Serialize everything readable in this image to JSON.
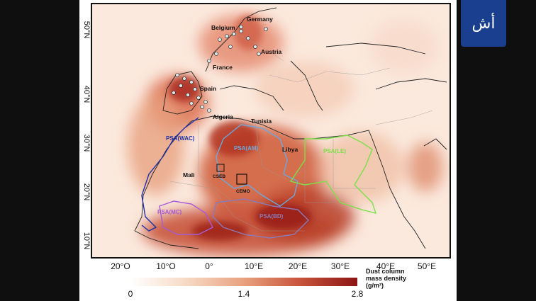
{
  "map": {
    "places": {
      "germany": "Germany",
      "belgium": "Belgium",
      "austria": "Austria",
      "france": "France",
      "spain": "Spain",
      "algeria": "Algeria",
      "tunisia": "Tunisia",
      "libya": "Libya",
      "mali": "Mali",
      "cseb": "CSEB",
      "cemo": "CEMO"
    },
    "regions": {
      "psa_wac": "PSA(WAC)",
      "psa_am": "PSA(AM)",
      "psa_le": "PSA(LE)",
      "psa_mc": "PSA(MC)",
      "psa_bd": "PSA(BD)"
    },
    "region_colors": {
      "psa_wac": "#1f2fa8",
      "psa_am": "#6aa8e0",
      "psa_le": "#7be04a",
      "psa_mc": "#a55ad6",
      "psa_bd": "#8a7ab8"
    },
    "lat_ticks": [
      "10°N",
      "20°N",
      "30°N",
      "40°N",
      "50°N"
    ],
    "lon_ticks": [
      "20°O",
      "10°O",
      "0°",
      "10°E",
      "20°E",
      "30°E",
      "40°E",
      "50°E"
    ]
  },
  "colorbar": {
    "min_label": "0",
    "mid_label": "1.4",
    "max_label": "2.8",
    "title_line1": "Dust column",
    "title_line2": "mass density",
    "title_line3": "(g/m²)",
    "colors": [
      "#ffffff",
      "#f7d9c4",
      "#e9a17f",
      "#c8533a",
      "#8c1414"
    ]
  },
  "logo": {
    "text": "أش",
    "color": "#1a3f8f"
  }
}
